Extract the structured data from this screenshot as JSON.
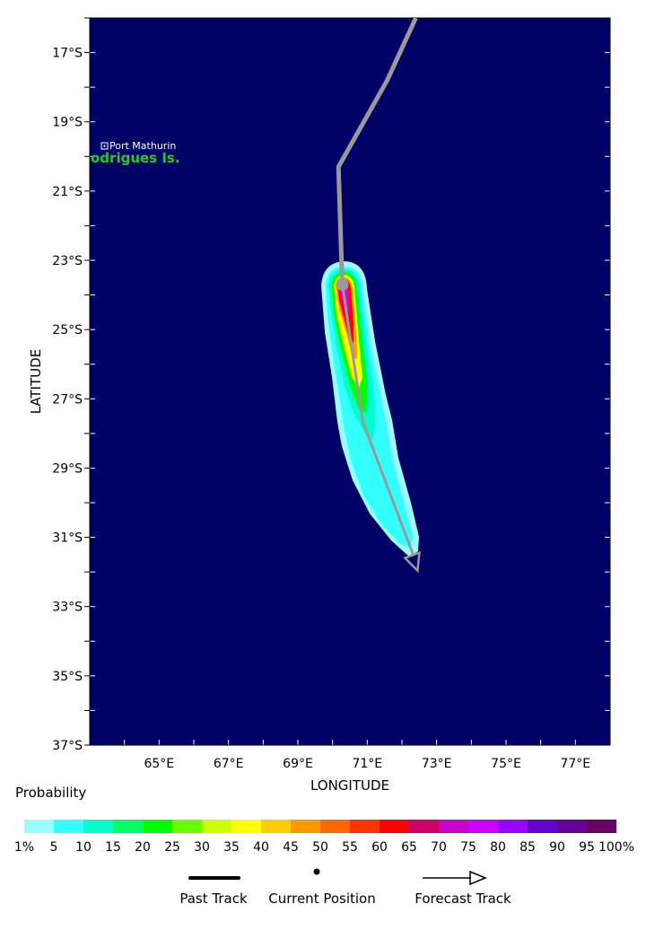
{
  "map": {
    "lon_range": [
      63.0,
      78.0
    ],
    "lat_range_south": [
      16.0,
      37.0
    ],
    "lon_ticks": [
      65,
      67,
      69,
      71,
      73,
      75,
      77
    ],
    "lat_ticks": [
      17,
      19,
      21,
      23,
      25,
      27,
      29,
      31,
      33,
      35,
      37
    ],
    "lon_tick_labels": [
      "65°E",
      "67°E",
      "69°E",
      "71°E",
      "73°E",
      "75°E",
      "77°E"
    ],
    "lat_tick_labels": [
      "17°S",
      "19°S",
      "21°S",
      "23°S",
      "25°S",
      "27°S",
      "29°S",
      "31°S",
      "33°S",
      "35°S",
      "37°S"
    ],
    "xlabel": "LONGITUDE",
    "ylabel": "LATITUDE",
    "background_color": "#000066",
    "places": [
      {
        "name": "Port Mathurin",
        "type": "town"
      },
      {
        "name": "odrigues Is.",
        "type": "island",
        "color": "#22cc22"
      }
    ],
    "past_track": [
      [
        72.4,
        16.0
      ],
      [
        71.57,
        17.81
      ],
      [
        70.17,
        20.3
      ],
      [
        70.28,
        23.7
      ]
    ],
    "current_position": [
      70.28,
      23.7
    ],
    "forecast_track": [
      [
        70.28,
        23.7
      ],
      [
        70.87,
        27.66
      ],
      [
        72.34,
        31.54
      ],
      [
        72.45,
        31.96
      ]
    ],
    "track_color": "#999999"
  },
  "legend": {
    "title": "Probability",
    "colors": [
      "#99ffff",
      "#33ffff",
      "#00ffcc",
      "#00ff66",
      "#00ff00",
      "#66ff00",
      "#ccff00",
      "#ffff00",
      "#ffcc00",
      "#ff9900",
      "#ff6600",
      "#ff3300",
      "#ff0000",
      "#cc0066",
      "#cc00cc",
      "#cc00ff",
      "#9900ff",
      "#6600cc",
      "#660099",
      "#660066"
    ],
    "labels": [
      "1%",
      "5",
      "10",
      "15",
      "20",
      "25",
      "30",
      "35",
      "40",
      "45",
      "50",
      "55",
      "60",
      "65",
      "70",
      "75",
      "80",
      "85",
      "90",
      "95",
      "100%"
    ],
    "past_track_label": "Past Track",
    "current_position_label": "Current Position",
    "forecast_track_label": "Forecast Track"
  }
}
